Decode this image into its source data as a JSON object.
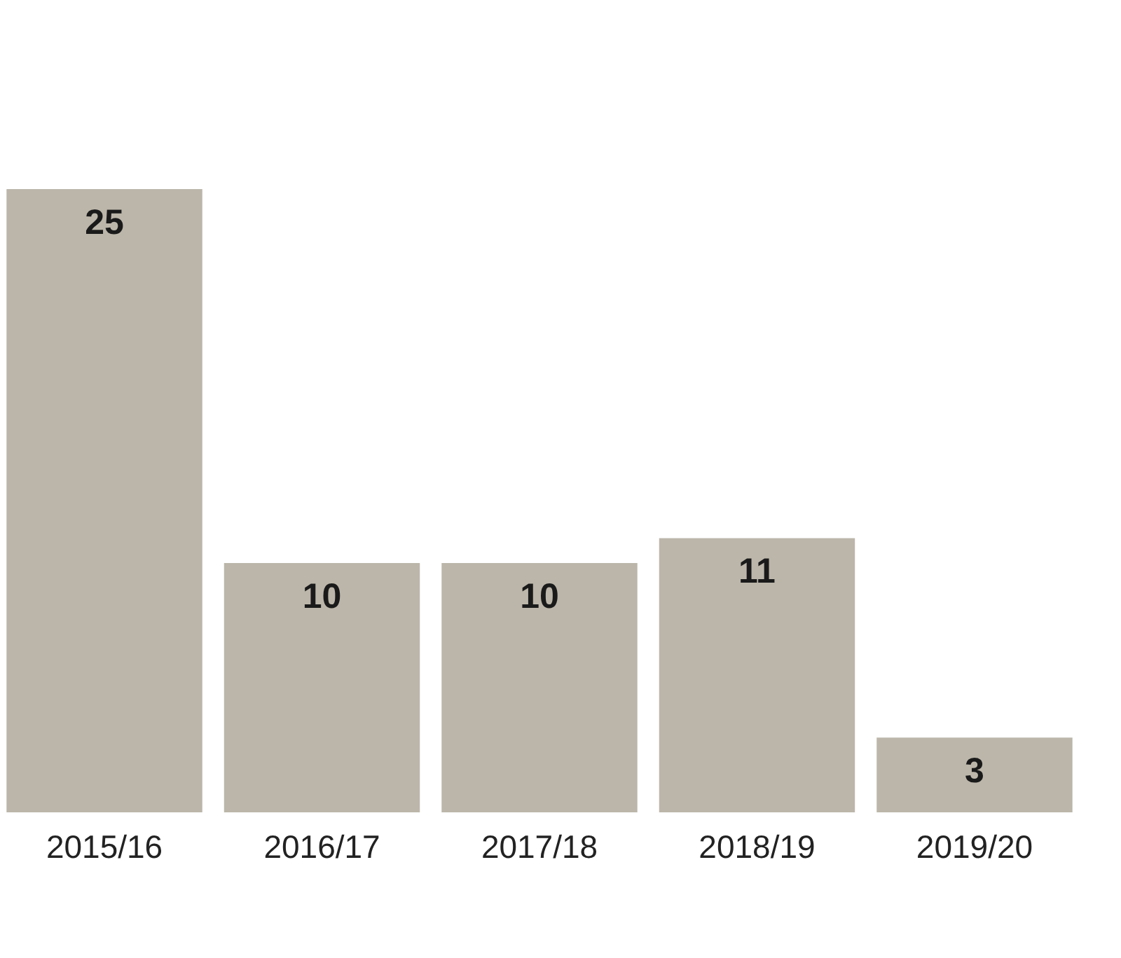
{
  "chart_data": {
    "type": "bar",
    "categories": [
      "2015/16",
      "2016/17",
      "2017/18",
      "2018/19",
      "2019/20"
    ],
    "values": [
      25,
      10,
      10,
      11,
      3
    ],
    "color": "#bcb6aa",
    "data_labels": true
  }
}
